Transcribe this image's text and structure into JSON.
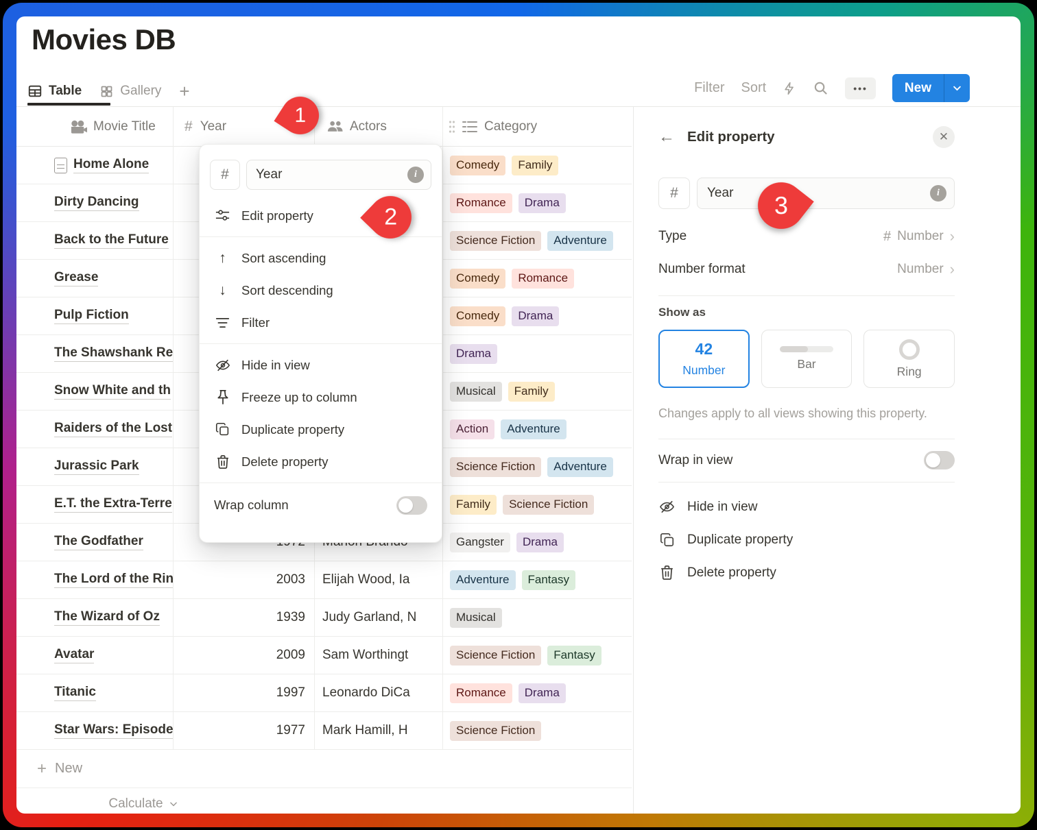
{
  "app": {
    "title": "Movies DB"
  },
  "tabs": {
    "table": "Table",
    "gallery": "Gallery",
    "add_view": "+"
  },
  "toolbar": {
    "filter": "Filter",
    "sort": "Sort",
    "more": "•••",
    "new_label": "New"
  },
  "table": {
    "columns": [
      {
        "label": "Movie Title",
        "icon": "movie-camera-icon"
      },
      {
        "label": "Year",
        "icon": "hash-icon",
        "hash": "#"
      },
      {
        "label": "Actors",
        "icon": "people-icon"
      },
      {
        "label": "Category",
        "icon": "list-icon"
      }
    ],
    "rows": [
      {
        "title": "Home Alone",
        "year": "",
        "actors": "",
        "has_icon": true,
        "tags": [
          {
            "label": "Comedy",
            "color": "orange"
          },
          {
            "label": "Family",
            "color": "yellow"
          }
        ]
      },
      {
        "title": "Dirty Dancing",
        "year": "",
        "actors": "",
        "has_icon": false,
        "tags": [
          {
            "label": "Romance",
            "color": "red"
          },
          {
            "label": "Drama",
            "color": "purple"
          }
        ]
      },
      {
        "title": "Back to the Future",
        "year": "",
        "actors": "",
        "has_icon": false,
        "tags": [
          {
            "label": "Science Fiction",
            "color": "brown"
          },
          {
            "label": "Adventure",
            "color": "blue"
          }
        ]
      },
      {
        "title": "Grease",
        "year": "",
        "actors": "",
        "has_icon": false,
        "tags": [
          {
            "label": "Comedy",
            "color": "orange"
          },
          {
            "label": "Romance",
            "color": "red"
          }
        ]
      },
      {
        "title": "Pulp Fiction",
        "year": "",
        "actors": "",
        "has_icon": false,
        "tags": [
          {
            "label": "Comedy",
            "color": "orange"
          },
          {
            "label": "Drama",
            "color": "purple"
          }
        ]
      },
      {
        "title": "The Shawshank Re",
        "year": "",
        "actors": "",
        "has_icon": false,
        "tags": [
          {
            "label": "Drama",
            "color": "purple"
          }
        ]
      },
      {
        "title": "Snow White and th",
        "year": "",
        "actors": "",
        "has_icon": false,
        "tags": [
          {
            "label": "Musical",
            "color": "gray"
          },
          {
            "label": "Family",
            "color": "yellow"
          }
        ]
      },
      {
        "title": "Raiders of the Lost",
        "year": "",
        "actors": "",
        "has_icon": false,
        "tags": [
          {
            "label": "Action",
            "color": "pink"
          },
          {
            "label": "Adventure",
            "color": "blue"
          }
        ]
      },
      {
        "title": "Jurassic Park",
        "year": "",
        "actors": "",
        "has_icon": false,
        "tags": [
          {
            "label": "Science Fiction",
            "color": "brown"
          },
          {
            "label": "Adventure",
            "color": "blue"
          }
        ]
      },
      {
        "title": "E.T. the Extra-Terre",
        "year": "",
        "actors": "",
        "has_icon": false,
        "tags": [
          {
            "label": "Family",
            "color": "yellow"
          },
          {
            "label": "Science Fiction",
            "color": "brown"
          }
        ]
      },
      {
        "title": "The Godfather",
        "year": "1972",
        "actors": "Marlon Brando",
        "has_icon": false,
        "tags": [
          {
            "label": "Gangster",
            "color": "default"
          },
          {
            "label": "Drama",
            "color": "purple"
          }
        ]
      },
      {
        "title": "The Lord of the Rin",
        "year": "2003",
        "actors": "Elijah Wood, Ia",
        "has_icon": false,
        "tags": [
          {
            "label": "Adventure",
            "color": "blue"
          },
          {
            "label": "Fantasy",
            "color": "green"
          }
        ]
      },
      {
        "title": "The Wizard of Oz",
        "year": "1939",
        "actors": "Judy Garland, N",
        "has_icon": false,
        "tags": [
          {
            "label": "Musical",
            "color": "gray"
          }
        ]
      },
      {
        "title": "Avatar",
        "year": "2009",
        "actors": "Sam Worthingt",
        "has_icon": false,
        "tags": [
          {
            "label": "Science Fiction",
            "color": "brown"
          },
          {
            "label": "Fantasy",
            "color": "green"
          }
        ]
      },
      {
        "title": "Titanic",
        "year": "1997",
        "actors": "Leonardo DiCa",
        "has_icon": false,
        "tags": [
          {
            "label": "Romance",
            "color": "red"
          },
          {
            "label": "Drama",
            "color": "purple"
          }
        ]
      },
      {
        "title": "Star Wars: Episode",
        "year": "1977",
        "actors": "Mark Hamill, H",
        "has_icon": false,
        "tags": [
          {
            "label": "Science Fiction",
            "color": "brown"
          }
        ]
      }
    ],
    "new_row": "New",
    "calculate": "Calculate"
  },
  "menu": {
    "type_hash": "#",
    "property_name": "Year",
    "edit_property": "Edit property",
    "sort_ascending": "Sort ascending",
    "sort_descending": "Sort descending",
    "filter": "Filter",
    "hide_in_view": "Hide in view",
    "freeze": "Freeze up to column",
    "duplicate": "Duplicate property",
    "delete": "Delete property",
    "wrap_column": "Wrap column",
    "sort_asc_arrow": "↑",
    "sort_desc_arrow": "↓"
  },
  "panel": {
    "back_arrow": "←",
    "header_title": "Edit property",
    "close": "✕",
    "type_hash": "#",
    "property_name": "Year",
    "info": "i",
    "type_label": "Type",
    "type_value": "Number",
    "type_value_hash": "#",
    "format_label": "Number format",
    "format_value": "Number",
    "chevron": "›",
    "show_as": "Show as",
    "card_number_value": "42",
    "card_number_label": "Number",
    "card_bar_label": "Bar",
    "card_ring_label": "Ring",
    "caption": "Changes apply to all views showing this property.",
    "wrap_label": "Wrap in view",
    "hide_in_view": "Hide in view",
    "duplicate": "Duplicate property",
    "delete": "Delete property"
  },
  "annotations": {
    "step1": "1",
    "step2": "2",
    "step3": "3"
  },
  "colors": {
    "accent_blue": "#2383e2",
    "annotation_red": "#ee3b3a",
    "tags": {
      "orange": {
        "bg": "#fadec9",
        "text": "#49290e"
      },
      "yellow": {
        "bg": "#fdecc8",
        "text": "#402c1b"
      },
      "red": {
        "bg": "#ffe2dd",
        "text": "#5d1715"
      },
      "purple": {
        "bg": "#e8deee",
        "text": "#412454"
      },
      "brown": {
        "bg": "#eee0da",
        "text": "#442a1e"
      },
      "blue": {
        "bg": "#d3e5ef",
        "text": "#183347"
      },
      "gray": {
        "bg": "#e3e2e0",
        "text": "#32302c"
      },
      "pink": {
        "bg": "#f5e0e9",
        "text": "#4c2337"
      },
      "green": {
        "bg": "#dbeddb",
        "text": "#1c3829"
      },
      "default": {
        "bg": "#f1f0ef",
        "text": "#32302c"
      }
    }
  }
}
